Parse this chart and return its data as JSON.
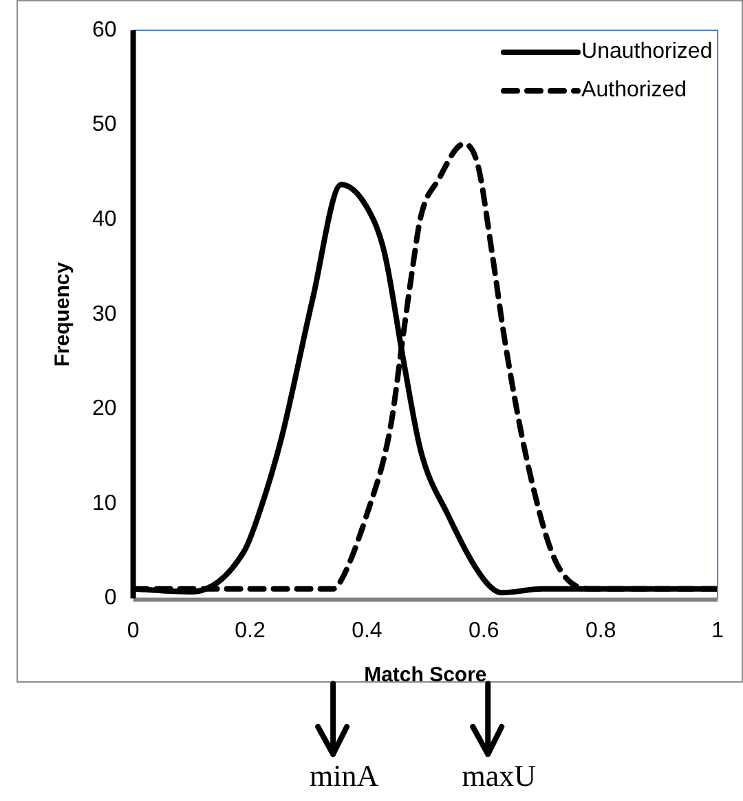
{
  "chart_data": {
    "type": "line",
    "xlabel": "Match Score",
    "ylabel": "Frequency",
    "xlim": [
      0,
      1
    ],
    "xticks": [
      0,
      0.2,
      0.4,
      0.6,
      0.8,
      1
    ],
    "ylim": [
      0,
      60
    ],
    "yticks": [
      0,
      10,
      20,
      30,
      40,
      50,
      60
    ],
    "grid": false,
    "legend": "top right",
    "marker": "none",
    "series": [
      {
        "name": "Unauthorized",
        "color": "#000000",
        "line_style": "solid",
        "x": [
          0,
          0.099,
          0.19,
          0.215,
          0.254,
          0.307,
          0.356,
          0.4,
          0.43,
          0.462,
          0.492,
          0.538,
          0.6,
          0.63,
          0.7,
          0.8,
          1
        ],
        "values": [
          1,
          0.7,
          5,
          8.9,
          17,
          31.6,
          43.7,
          41.3,
          36.5,
          25.3,
          15.6,
          8.9,
          2,
          0.6,
          1,
          1,
          1
        ]
      },
      {
        "name": "Authorized",
        "color": "#000000",
        "line_style": "dashed",
        "x": [
          0,
          0.2,
          0.342,
          0.353,
          0.4,
          0.44,
          0.462,
          0.476,
          0.492,
          0.522,
          0.566,
          0.59,
          0.614,
          0.637,
          0.677,
          0.723,
          0.785,
          0.9,
          1
        ],
        "values": [
          1,
          1,
          1,
          1.6,
          8.9,
          18,
          27.8,
          34,
          40.3,
          44.2,
          48,
          45.7,
          36.5,
          26.8,
          13.7,
          3.9,
          1,
          1,
          1
        ]
      }
    ],
    "ref_lines": [
      {
        "axis": "x",
        "value": 0.342,
        "label": "minA"
      },
      {
        "axis": "x",
        "value": 0.607,
        "label": "maxU"
      }
    ]
  }
}
